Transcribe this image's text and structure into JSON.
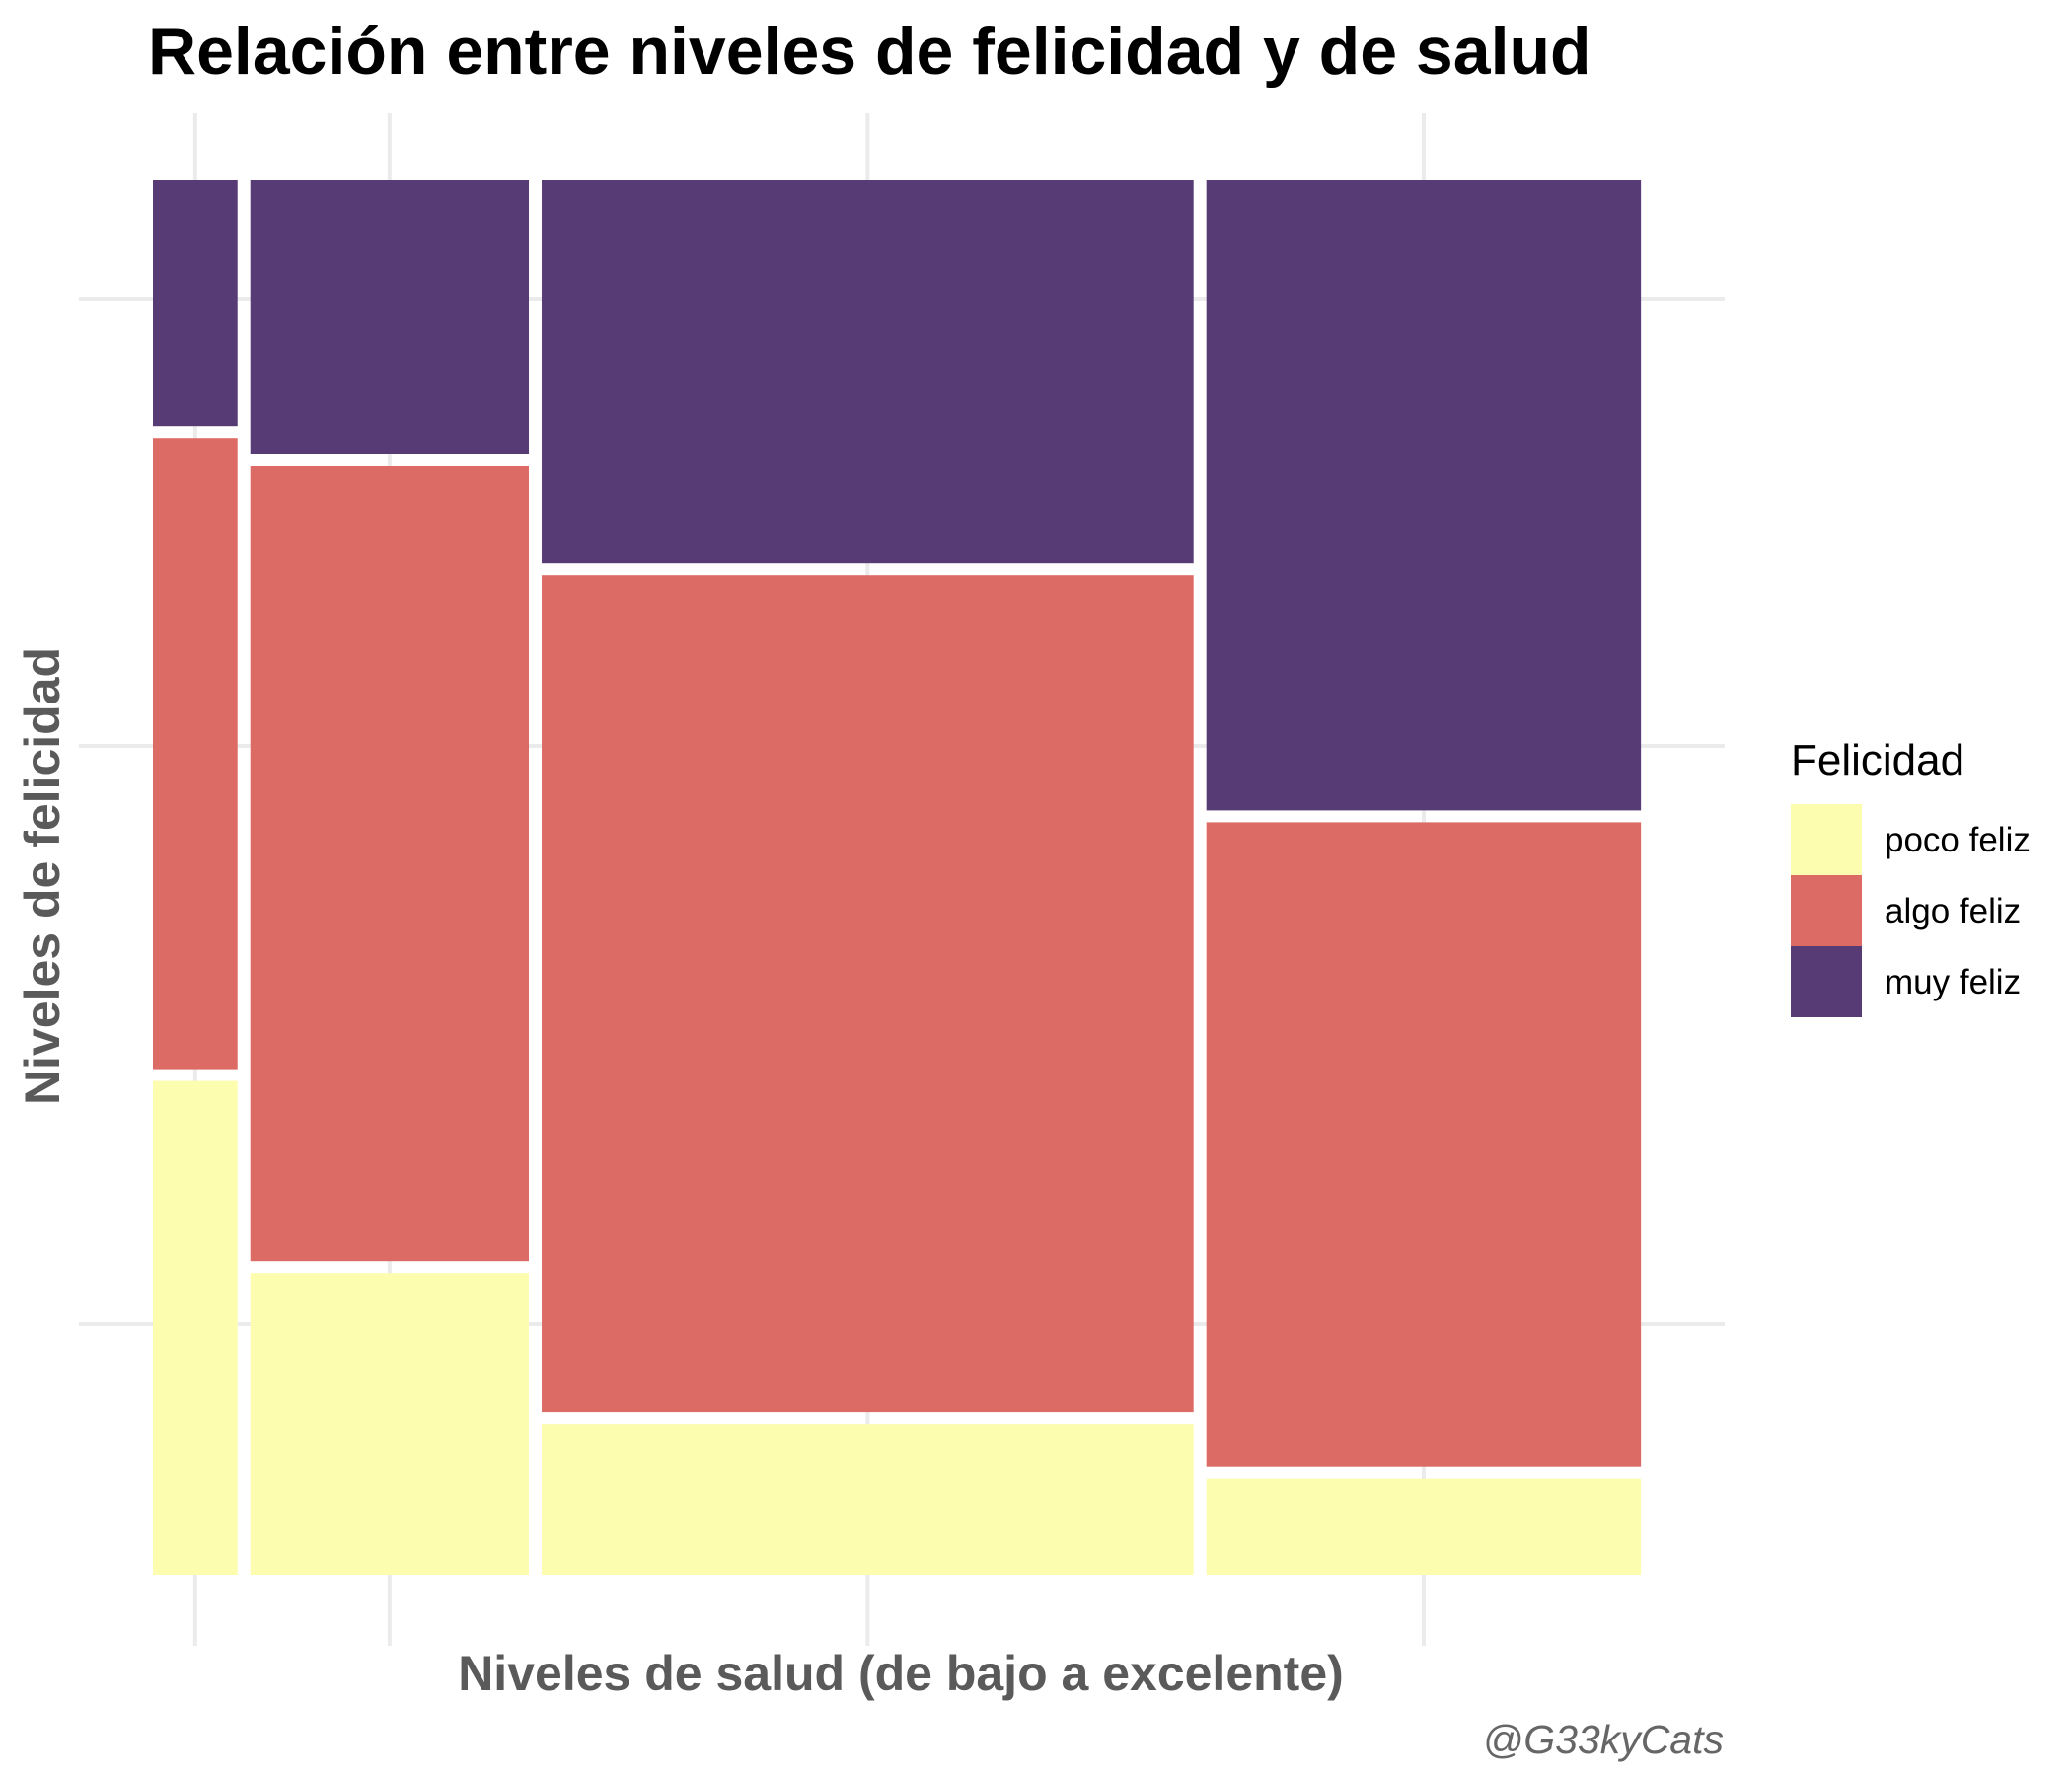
{
  "chart_data": {
    "type": "mosaic",
    "title": "Relación entre niveles de felicidad y de salud",
    "xlabel": "Niveles de salud (de bajo a excelente)",
    "ylabel": "Niveles de felicidad",
    "legend": {
      "title": "Felicidad",
      "placement": "right",
      "entries": [
        "poco feliz",
        "algo feliz",
        "muy feliz"
      ]
    },
    "colors": {
      "poco feliz": "#fcfdaf",
      "algo feliz": "#dd6b65",
      "muy feliz": "#573b74"
    },
    "caption": "@G33kyCats",
    "grid": true,
    "x_tick_labels_shown": false,
    "y_tick_labels_shown": false,
    "columns": [
      {
        "width_share": 0.058,
        "proportions": {
          "poco feliz": 0.36,
          "algo feliz": 0.46,
          "muy feliz": 0.18
        }
      },
      {
        "width_share": 0.191,
        "proportions": {
          "poco feliz": 0.22,
          "algo feliz": 0.58,
          "muy feliz": 0.2
        }
      },
      {
        "width_share": 0.447,
        "proportions": {
          "poco feliz": 0.11,
          "algo feliz": 0.61,
          "muy feliz": 0.28
        }
      },
      {
        "width_share": 0.298,
        "proportions": {
          "poco feliz": 0.07,
          "algo feliz": 0.47,
          "muy feliz": 0.46
        }
      }
    ]
  }
}
